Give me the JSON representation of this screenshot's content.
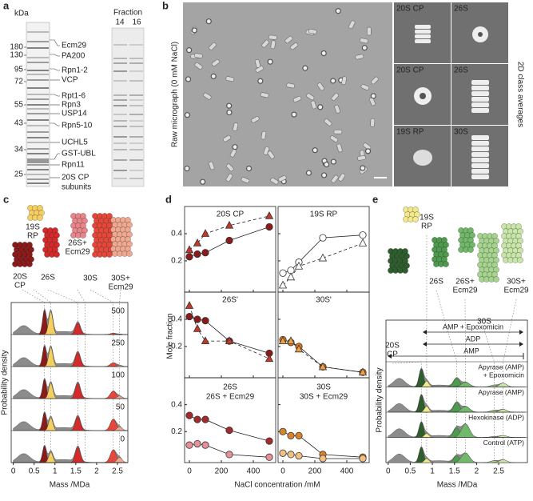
{
  "panels": {
    "a": {
      "label": "a",
      "kda_label": "kDa",
      "markers": [
        180,
        130,
        95,
        72,
        55,
        43,
        34,
        25
      ],
      "bands": [
        {
          "text": [
            "Ecm29"
          ],
          "color": "#e05a6a"
        },
        {
          "text": [
            "PA200"
          ],
          "color": "#e05a6a"
        },
        {
          "text": [
            "Rpn1-2"
          ],
          "color": "#e8a020"
        },
        {
          "text": [
            "VCP"
          ],
          "color": "#e05a6a"
        },
        {
          "text": [
            "Rpt1-6"
          ],
          "color": "#e8a020"
        },
        {
          "text": [
            "Rpn3"
          ],
          "color": "#e8a020"
        },
        {
          "text": [
            "USP14"
          ],
          "color": "#e05a6a"
        },
        {
          "text": [
            "Rpn5-10"
          ],
          "color": "#e8a020"
        },
        {
          "text": [
            "UCHL5"
          ],
          "color": "#e05a6a"
        },
        {
          "text": [
            "GST-UBL"
          ],
          "color": "#222222"
        },
        {
          "text": [
            "Rpn11"
          ],
          "color": "#e8a020"
        },
        {
          "text": [
            "20S CP",
            "subunits"
          ],
          "color": "#a0202a"
        }
      ],
      "fraction_label": "Fraction",
      "fractions": [
        14,
        16
      ]
    },
    "b": {
      "label": "b",
      "micrograph_label": "Raw micrograph (0 mM NaCl)",
      "averages_label": "2D class averages",
      "classes": [
        "20S CP",
        "26S",
        "20S CP",
        "26S",
        "19S RP",
        "30S"
      ]
    },
    "c": {
      "label": "c",
      "complexes": [
        {
          "text": [
            "20S",
            "CP"
          ],
          "color": "#8b1a1a"
        },
        {
          "text": [
            "19S",
            "RP"
          ],
          "color": "#f5d060"
        },
        {
          "text": [
            "26S"
          ],
          "color": "#d42a2a"
        },
        {
          "text": [
            "26S+",
            "Ecm29"
          ],
          "color": "#e8848a"
        },
        {
          "text": [
            "30S"
          ],
          "color": "#e5483a"
        },
        {
          "text": [
            "30S+",
            "Ecm29"
          ],
          "color": "#f0a890"
        }
      ],
      "ylabel": "Probability density",
      "xlabel": "Mass /MDa",
      "xlim": [
        -0.05,
        2.75
      ],
      "xticks": [
        0,
        0.5,
        1,
        1.5,
        2,
        2.5
      ],
      "traces": [
        500,
        250,
        100,
        50,
        0
      ]
    },
    "d": {
      "label": "d",
      "chart_data": {
        "type": "scatter",
        "ylabel": "Mole fraction",
        "xlabel": "NaCl concentration /mM",
        "x": [
          0,
          50,
          100,
          250,
          500
        ],
        "xlim": [
          -30,
          540
        ],
        "xticks": [
          0,
          200,
          400
        ],
        "ylim": [
          -0.03,
          0.6
        ],
        "yticks": [
          0.2,
          0.4
        ],
        "subplots": [
          {
            "titles": [
              {
                "text": "20S CP",
                "color": "#c0392b"
              }
            ],
            "series": [
              {
                "color": "#8b1a1a",
                "marker": "circle",
                "filled": true,
                "dashed": false,
                "values": [
                  0.23,
                  0.25,
                  0.26,
                  0.35,
                  0.45
                ]
              },
              {
                "color": "#c0392b",
                "marker": "triangle",
                "filled": true,
                "dashed": true,
                "values": [
                  0.28,
                  0.33,
                  0.4,
                  0.46,
                  0.53
                ]
              }
            ]
          },
          {
            "titles": [
              {
                "text": "19S RP",
                "color": "#e8b830"
              }
            ],
            "series": [
              {
                "color": "#333333",
                "marker": "circle",
                "filled": false,
                "dashed": false,
                "values": [
                  0.11,
                  0.13,
                  0.19,
                  0.37,
                  0.39
                ]
              },
              {
                "color": "#333333",
                "marker": "triangle",
                "filled": false,
                "dashed": true,
                "values": [
                  0.02,
                  0.08,
                  0.16,
                  0.22,
                  0.33
                ]
              }
            ]
          },
          {
            "titles": [
              {
                "text": "26S'",
                "color": "#c0392b"
              }
            ],
            "series": [
              {
                "color": "#8b1a1a",
                "marker": "circle",
                "filled": true,
                "dashed": false,
                "values": [
                  0.42,
                  0.4,
                  0.39,
                  0.24,
                  0.15
                ]
              },
              {
                "color": "#c0392b",
                "marker": "triangle",
                "filled": true,
                "dashed": true,
                "values": [
                  0.5,
                  0.33,
                  0.24,
                  0.24,
                  0.11
                ]
              }
            ]
          },
          {
            "titles": [
              {
                "text": "30S'",
                "color": "#e07820"
              }
            ],
            "series": [
              {
                "color": "#e07820",
                "marker": "circle",
                "filled": true,
                "dashed": false,
                "values": [
                  0.25,
                  0.23,
                  0.2,
                  0.05,
                  0.01
                ]
              },
              {
                "color": "#f0a040",
                "marker": "triangle",
                "filled": true,
                "dashed": true,
                "values": [
                  0.24,
                  0.24,
                  0.18,
                  0.05,
                  0.01
                ]
              }
            ]
          },
          {
            "titles": [
              {
                "text": "26S",
                "color": "#b22a2a"
              },
              {
                "text": "26S + Ecm29",
                "color": "#e06070"
              }
            ],
            "series": [
              {
                "color": "#a52a2a",
                "marker": "circle",
                "filled": true,
                "dashed": false,
                "values": [
                  0.32,
                  0.29,
                  0.29,
                  0.21,
                  0.13
                ]
              },
              {
                "color": "#e8909a",
                "marker": "circle",
                "filled": true,
                "dashed": false,
                "values": [
                  0.1,
                  0.11,
                  0.1,
                  0.03,
                  0.01
                ]
              }
            ]
          },
          {
            "titles": [
              {
                "text": "30S",
                "color": "#e07820"
              },
              {
                "text": "30S + Ecm29",
                "color": "#f0b060"
              }
            ],
            "series": [
              {
                "color": "#d9822b",
                "marker": "circle",
                "filled": true,
                "dashed": false,
                "values": [
                  0.2,
                  0.17,
                  0.17,
                  0.03,
                  0.01
                ]
              },
              {
                "color": "#f2c080",
                "marker": "circle",
                "filled": true,
                "dashed": false,
                "values": [
                  0.04,
                  0.03,
                  0.02,
                  0.0,
                  0.0
                ]
              }
            ]
          }
        ]
      }
    },
    "e": {
      "label": "e",
      "complexes": [
        {
          "text": [
            "20S",
            "CP"
          ],
          "color": "#2e5e2e"
        },
        {
          "text": [
            "19S",
            "RP"
          ],
          "color": "#f2e98a"
        },
        {
          "text": [
            "26S"
          ],
          "color": "#4e9a4e"
        },
        {
          "text": [
            "26S+",
            "Ecm29"
          ],
          "color": "#72b86a"
        },
        {
          "text": [
            "30S"
          ],
          "color": "#a6d48e"
        },
        {
          "text": [
            "30S+",
            "Ecm29"
          ],
          "color": "#c8e6a8"
        }
      ],
      "arrows": [
        "AMP + Epoxomicin",
        "ADP",
        "AMP"
      ],
      "conditions": [
        [
          "Apyrase (AMP)",
          "+ Epoxomicin"
        ],
        [
          "Apyrase (AMP)"
        ],
        [
          "Hexokinase (ADP)"
        ],
        [
          "Control (ATP)"
        ]
      ],
      "ylabel": "Probability density",
      "xlabel": "Mass /MDa",
      "xlim": [
        -0.05,
        3.15
      ],
      "xticks": [
        0,
        0.5,
        1,
        1.5,
        2,
        2.5
      ]
    }
  }
}
